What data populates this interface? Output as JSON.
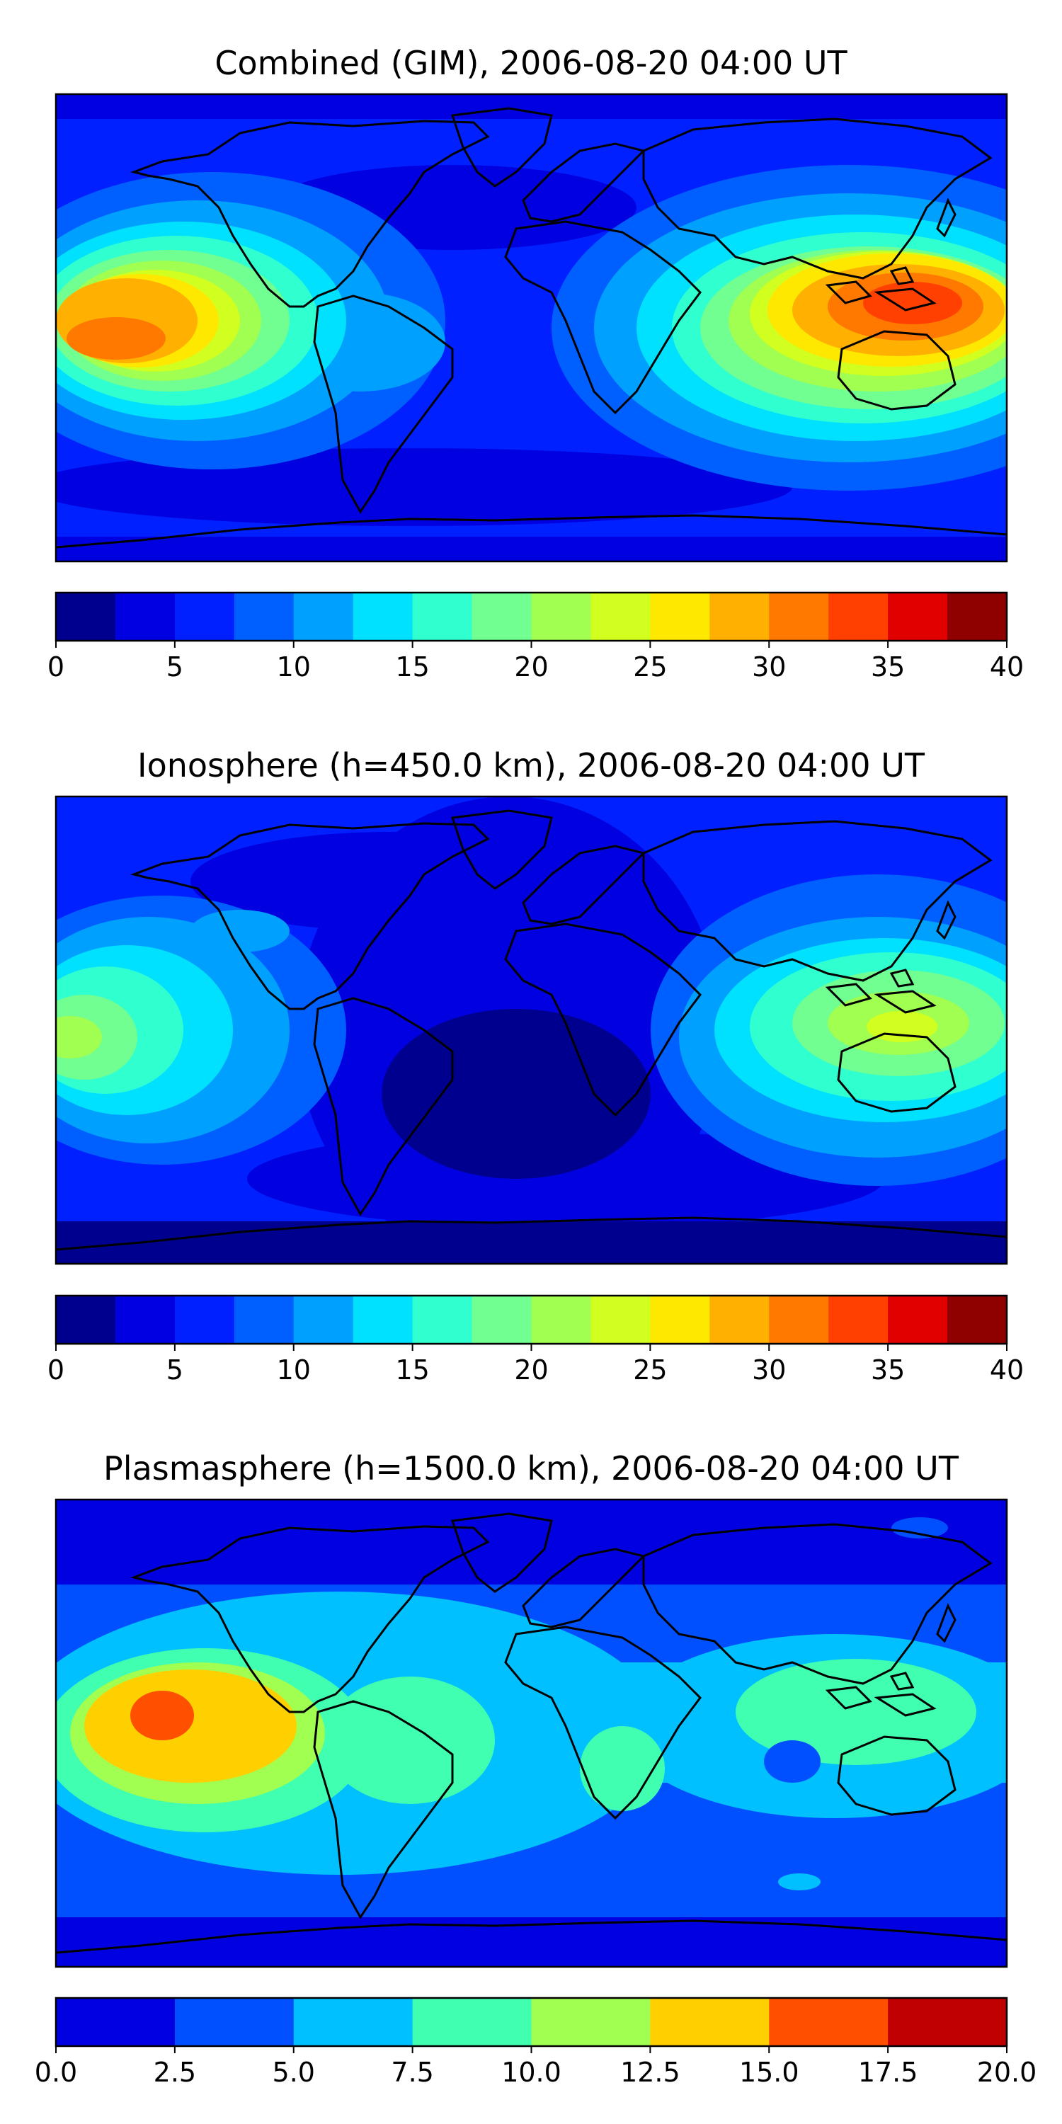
{
  "figure": {
    "panels": [
      {
        "id": "combined",
        "title": "Combined (GIM), 2006-08-20 04:00 UT",
        "colorbar": {
          "levels": [
            0,
            2.5,
            5,
            7.5,
            10,
            12.5,
            15,
            17.5,
            20,
            22.5,
            25,
            27.5,
            30,
            32.5,
            35,
            37.5,
            40
          ],
          "tick_labels": [
            "0",
            "5",
            "10",
            "15",
            "20",
            "25",
            "30",
            "35",
            "40"
          ],
          "colors": [
            "#00008f",
            "#0000e0",
            "#0020ff",
            "#0060ff",
            "#00a0ff",
            "#00e0ff",
            "#30ffd0",
            "#70ff90",
            "#a0ff50",
            "#d0ff20",
            "#ffe800",
            "#ffb000",
            "#ff7800",
            "#ff4000",
            "#e00000",
            "#8f0000"
          ]
        },
        "map_features": [
          "Pacific hot region, peak ~32.5-35",
          "East Asia / Maritime Continent peak ~32.5-35",
          "Low values over Atlantic and polar regions"
        ]
      },
      {
        "id": "ionosphere",
        "title": "Ionosphere  (h=450.0 km), 2006-08-20 04:00 UT",
        "colorbar": {
          "levels": [
            0,
            2.5,
            5,
            7.5,
            10,
            12.5,
            15,
            17.5,
            20,
            22.5,
            25,
            27.5,
            30,
            32.5,
            35,
            37.5,
            40
          ],
          "tick_labels": [
            "0",
            "5",
            "10",
            "15",
            "20",
            "25",
            "30",
            "35",
            "40"
          ],
          "colors": [
            "#00008f",
            "#0000e0",
            "#0020ff",
            "#0060ff",
            "#00a0ff",
            "#00e0ff",
            "#30ffd0",
            "#70ff90",
            "#a0ff50",
            "#d0ff20",
            "#ffe800",
            "#ffb000",
            "#ff7800",
            "#ff4000",
            "#e00000",
            "#8f0000"
          ]
        }
      },
      {
        "id": "plasmasphere",
        "title": "Plasmasphere (h=1500.0 km), 2006-08-20 04:00 UT",
        "colorbar": {
          "levels": [
            0,
            2.5,
            5,
            7.5,
            10,
            12.5,
            15,
            17.5,
            20
          ],
          "tick_labels": [
            "0.0",
            "2.5",
            "5.0",
            "7.5",
            "10.0",
            "12.5",
            "15.0",
            "17.5",
            "20.0"
          ],
          "colors": [
            "#0000e0",
            "#0050ff",
            "#00c0ff",
            "#40ffb0",
            "#a0ff50",
            "#ffd000",
            "#ff5000",
            "#c00000"
          ]
        }
      }
    ]
  }
}
